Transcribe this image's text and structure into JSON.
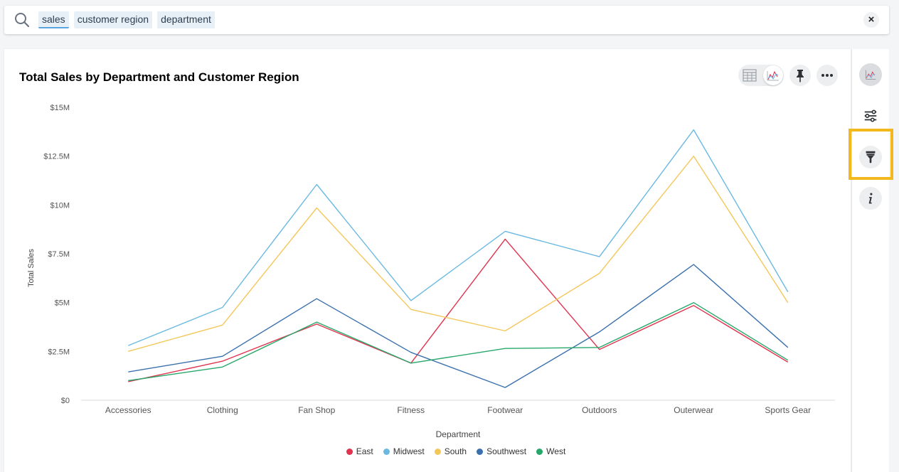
{
  "search": {
    "tokens": [
      "sales",
      "customer region",
      "department"
    ],
    "clear_label": "×"
  },
  "chart": {
    "title": "Total Sales by Department and Customer Region"
  },
  "icons": {
    "search": "search-icon",
    "table_view": "table-icon",
    "chart_view": "line-chart-icon",
    "pin": "pin-icon",
    "more": "more-horizontal-icon",
    "clear": "close-icon",
    "rail": [
      "line-chart-icon",
      "sliders-icon",
      "brush-icon",
      "info-icon"
    ]
  },
  "colors": {
    "East": "#e0334e",
    "Midwest": "#6ab9e2",
    "South": "#f4c75b",
    "Southwest": "#3a70ad",
    "West": "#27a86a",
    "highlight": "#f2b81d"
  },
  "chart_data": {
    "type": "line",
    "title": "Total Sales by Department and Customer Region",
    "xlabel": "Department",
    "ylabel": "Total Sales",
    "categories": [
      "Accessories",
      "Clothing",
      "Fan Shop",
      "Fitness",
      "Footwear",
      "Outdoors",
      "Outerwear",
      "Sports Gear"
    ],
    "ylim": [
      0,
      15000000
    ],
    "yticks": [
      0,
      2500000,
      5000000,
      7500000,
      10000000,
      12500000,
      15000000
    ],
    "ytick_labels": [
      "$0",
      "$2.5M",
      "$5M",
      "$7.5M",
      "$10M",
      "$12.5M",
      "$15M"
    ],
    "grid": false,
    "legend_position": "bottom",
    "series": [
      {
        "name": "East",
        "values": [
          950000,
          2000000,
          3900000,
          1900000,
          8250000,
          2600000,
          4850000,
          1950000
        ]
      },
      {
        "name": "Midwest",
        "values": [
          2800000,
          4750000,
          11050000,
          5100000,
          8650000,
          7350000,
          13850000,
          5550000
        ]
      },
      {
        "name": "South",
        "values": [
          2500000,
          3850000,
          9850000,
          4650000,
          3550000,
          6500000,
          12500000,
          5000000
        ]
      },
      {
        "name": "Southwest",
        "values": [
          1450000,
          2250000,
          5200000,
          2450000,
          650000,
          3500000,
          6950000,
          2700000
        ]
      },
      {
        "name": "West",
        "values": [
          1000000,
          1700000,
          4000000,
          1900000,
          2650000,
          2700000,
          5000000,
          2050000
        ]
      }
    ]
  }
}
